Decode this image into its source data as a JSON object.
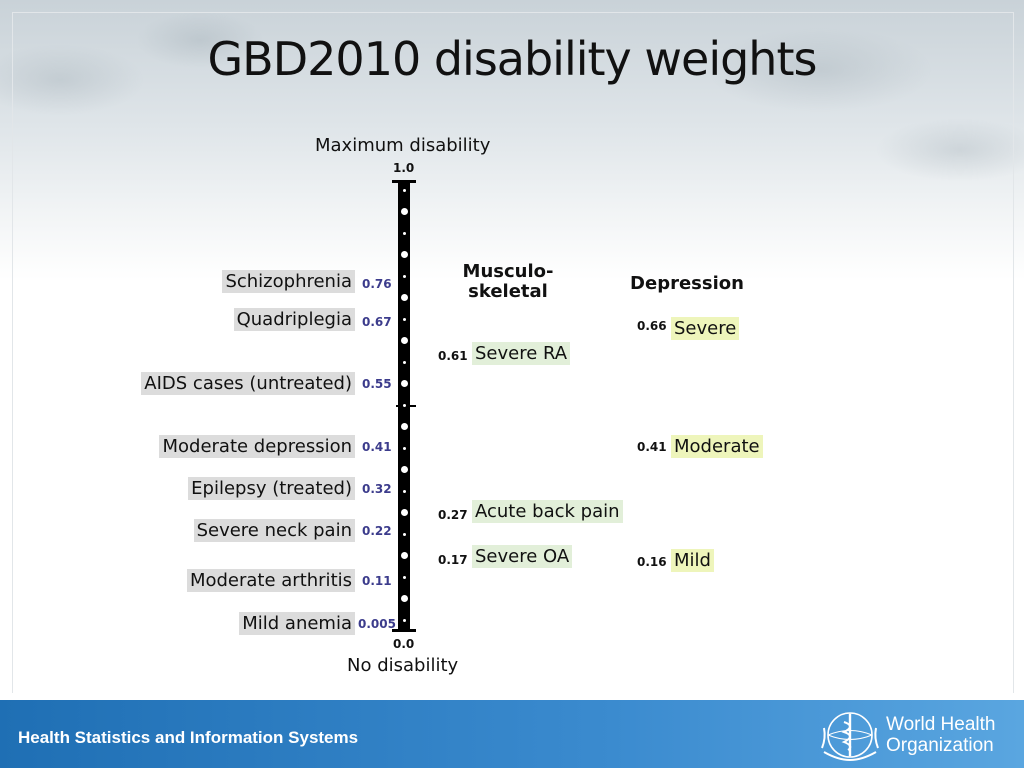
{
  "title": "GBD2010 disability weights",
  "chart_data": {
    "type": "scale",
    "title": "GBD2010 disability weights",
    "ylim": [
      0.0,
      1.0
    ],
    "top_label": "Maximum disability",
    "top_value": "1.0",
    "bottom_label": "No disability",
    "bottom_value": "0.0",
    "conditions": [
      {
        "label": "Schizophrenia",
        "value": 0.76,
        "value_text": "0.76"
      },
      {
        "label": "Quadriplegia",
        "value": 0.67,
        "value_text": "0.67"
      },
      {
        "label": "AIDS cases (untreated)",
        "value": 0.55,
        "value_text": "0.55"
      },
      {
        "label": "Moderate depression",
        "value": 0.41,
        "value_text": "0.41"
      },
      {
        "label": "Epilepsy (treated)",
        "value": 0.32,
        "value_text": "0.32"
      },
      {
        "label": "Severe neck pain",
        "value": 0.22,
        "value_text": "0.22"
      },
      {
        "label": "Moderate arthritis",
        "value": 0.11,
        "value_text": "0.11"
      },
      {
        "label": "Mild anemia",
        "value": 0.005,
        "value_text": "0.005"
      }
    ],
    "musculoskeletal": {
      "heading": "Musculo-\nskeletal",
      "items": [
        {
          "label": "Severe RA",
          "value": 0.61,
          "value_text": "0.61"
        },
        {
          "label": "Acute back pain",
          "value": 0.27,
          "value_text": "0.27"
        },
        {
          "label": "Severe OA",
          "value": 0.17,
          "value_text": "0.17"
        }
      ]
    },
    "depression": {
      "heading": "Depression",
      "items": [
        {
          "label": "Severe",
          "value": 0.66,
          "value_text": "0.66"
        },
        {
          "label": "Moderate",
          "value": 0.41,
          "value_text": "0.41"
        },
        {
          "label": "Mild",
          "value": 0.16,
          "value_text": "0.16"
        }
      ]
    },
    "colors": {
      "conditions_chip": "#dcdcdc",
      "musculoskeletal_chip": "#e2efd9",
      "depression_chip": "#eef5bb",
      "condition_value_text": "#3c3c8c"
    }
  },
  "footer": {
    "text": "Health Statistics and Information Systems",
    "org_line1": "World Health",
    "org_line2": "Organization",
    "logo_icon": "who-emblem-icon",
    "color": "#1f6fb4"
  }
}
